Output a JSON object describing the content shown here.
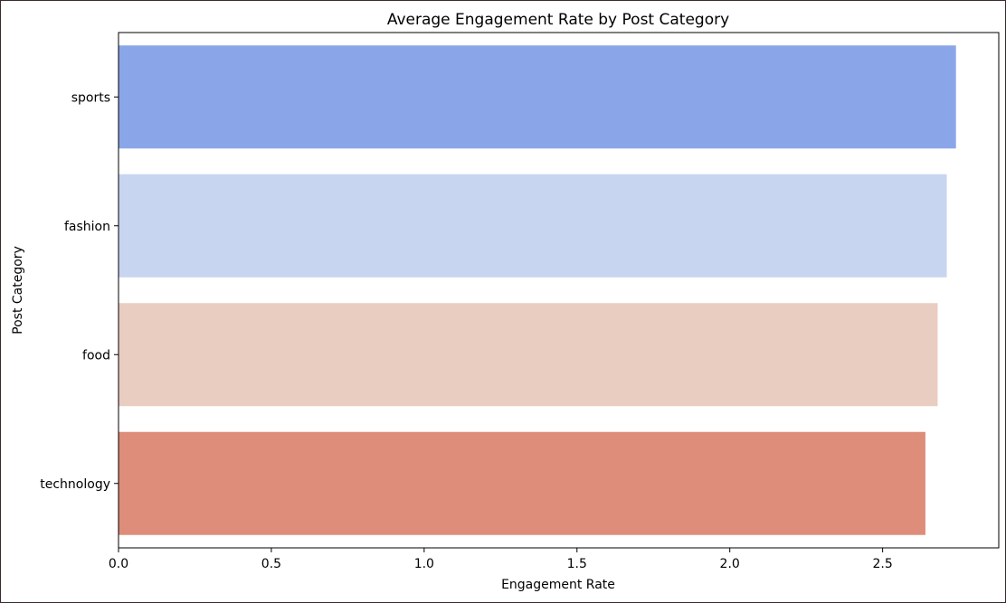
{
  "chart_data": {
    "type": "bar",
    "orientation": "horizontal",
    "title": "Average Engagement Rate by Post Category",
    "xlabel": "Engagement Rate",
    "ylabel": "Post Category",
    "categories": [
      "sports",
      "fashion",
      "food",
      "technology"
    ],
    "values": [
      2.74,
      2.71,
      2.68,
      2.64
    ],
    "colors": [
      "#8aa6e8",
      "#c7d5f0",
      "#e9cdc0",
      "#dd8d79"
    ],
    "xlim": [
      0,
      2.88
    ],
    "xticks": [
      0.0,
      0.5,
      1.0,
      1.5,
      2.0,
      2.5
    ],
    "xtick_labels": [
      "0.0",
      "0.5",
      "1.0",
      "1.5",
      "2.0",
      "2.5"
    ],
    "grid": false,
    "legend": null
  }
}
